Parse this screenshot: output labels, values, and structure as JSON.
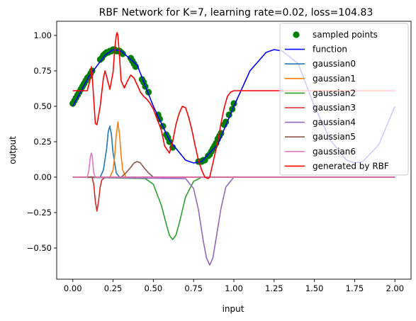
{
  "chart_data": {
    "type": "line",
    "title": "RBF Network for K=7, learning rate=0.02, loss=104.83",
    "xlabel": "input",
    "ylabel": "output",
    "xlim": [
      -0.1,
      2.1
    ],
    "ylim": [
      -0.72,
      1.1
    ],
    "xticks": [
      0.0,
      0.25,
      0.5,
      0.75,
      1.0,
      1.25,
      1.5,
      1.75,
      2.0
    ],
    "xtick_labels": [
      "0.00",
      "0.25",
      "0.50",
      "0.75",
      "1.00",
      "1.25",
      "1.50",
      "1.75",
      "2.00"
    ],
    "yticks": [
      -0.5,
      -0.25,
      0.0,
      0.25,
      0.5,
      0.75,
      1.0
    ],
    "ytick_labels": [
      "−0.50",
      "−0.25",
      "0.00",
      "0.25",
      "0.50",
      "0.75",
      "1.00"
    ],
    "grid": false,
    "legend_position": "top-right",
    "series": [
      {
        "name": "sampled points",
        "kind": "scatter",
        "color": "#008000",
        "x": [
          0.0,
          0.01,
          0.02,
          0.03,
          0.04,
          0.05,
          0.06,
          0.07,
          0.08,
          0.09,
          0.1,
          0.11,
          0.12,
          0.17,
          0.18,
          0.19,
          0.2,
          0.21,
          0.22,
          0.23,
          0.24,
          0.25,
          0.26,
          0.27,
          0.28,
          0.29,
          0.3,
          0.31,
          0.36,
          0.37,
          0.38,
          0.39,
          0.43,
          0.44,
          0.45,
          0.47,
          0.53,
          0.54,
          0.56,
          0.58,
          0.59,
          0.6,
          0.62,
          0.78,
          0.79,
          0.8,
          0.81,
          0.82,
          0.84,
          0.85,
          0.86,
          0.87,
          0.88,
          0.89,
          0.9,
          0.91,
          0.92,
          0.94,
          0.95,
          0.97,
          0.99,
          1.0
        ],
        "y": [
          0.52,
          0.54,
          0.56,
          0.58,
          0.6,
          0.62,
          0.64,
          0.66,
          0.68,
          0.7,
          0.71,
          0.73,
          0.75,
          0.83,
          0.84,
          0.86,
          0.87,
          0.88,
          0.88,
          0.89,
          0.89,
          0.9,
          0.9,
          0.89,
          0.89,
          0.89,
          0.88,
          0.87,
          0.84,
          0.82,
          0.8,
          0.78,
          0.69,
          0.67,
          0.64,
          0.6,
          0.44,
          0.41,
          0.36,
          0.3,
          0.28,
          0.25,
          0.21,
          0.11,
          0.11,
          0.11,
          0.12,
          0.12,
          0.15,
          0.16,
          0.18,
          0.2,
          0.22,
          0.24,
          0.27,
          0.29,
          0.31,
          0.37,
          0.39,
          0.44,
          0.48,
          0.52
        ]
      },
      {
        "name": "function",
        "kind": "line",
        "color": "#0000ff",
        "x": [
          0.0,
          0.1,
          0.2,
          0.25,
          0.3,
          0.4,
          0.5,
          0.6,
          0.7,
          0.75,
          0.8,
          0.9,
          1.0,
          1.1,
          1.2,
          1.25,
          1.3,
          1.4,
          1.5,
          1.6,
          1.7,
          1.75,
          1.8,
          1.9,
          2.0
        ],
        "y": [
          0.5,
          0.71,
          0.86,
          0.9,
          0.89,
          0.79,
          0.5,
          0.26,
          0.12,
          0.1,
          0.11,
          0.23,
          0.5,
          0.75,
          0.88,
          0.9,
          0.89,
          0.8,
          0.5,
          0.26,
          0.12,
          0.1,
          0.11,
          0.23,
          0.5
        ]
      },
      {
        "name": "gaussian0",
        "kind": "line",
        "color": "#1f77b4",
        "x": [
          0.0,
          0.17,
          0.19,
          0.21,
          0.22,
          0.23,
          0.24,
          0.25,
          0.27,
          0.29,
          2.0
        ],
        "y": [
          0.0,
          0.0,
          0.05,
          0.2,
          0.32,
          0.36,
          0.3,
          0.17,
          0.03,
          0.0,
          0.0
        ]
      },
      {
        "name": "gaussian1",
        "kind": "line",
        "color": "#ff7f0e",
        "x": [
          0.0,
          0.23,
          0.25,
          0.26,
          0.27,
          0.28,
          0.29,
          0.3,
          0.31,
          0.33,
          2.0
        ],
        "y": [
          0.0,
          0.0,
          0.05,
          0.15,
          0.3,
          0.39,
          0.3,
          0.15,
          0.05,
          0.0,
          0.0
        ]
      },
      {
        "name": "gaussian2",
        "kind": "line",
        "color": "#2ca02c",
        "x": [
          0.0,
          0.45,
          0.5,
          0.55,
          0.58,
          0.6,
          0.62,
          0.64,
          0.66,
          0.7,
          0.75,
          0.8,
          2.0
        ],
        "y": [
          0.0,
          -0.01,
          -0.05,
          -0.2,
          -0.33,
          -0.41,
          -0.44,
          -0.41,
          -0.33,
          -0.14,
          -0.03,
          0.0,
          0.0
        ]
      },
      {
        "name": "gaussian3",
        "kind": "line",
        "color": "#d62728",
        "x": [
          0.0,
          0.12,
          0.13,
          0.14,
          0.15,
          0.16,
          0.17,
          0.18,
          0.2,
          2.0
        ],
        "y": [
          0.0,
          0.0,
          -0.05,
          -0.17,
          -0.24,
          -0.17,
          -0.07,
          -0.02,
          0.0,
          0.0
        ]
      },
      {
        "name": "gaussian4",
        "kind": "line",
        "color": "#9467bd",
        "x": [
          0.0,
          0.7,
          0.75,
          0.78,
          0.81,
          0.83,
          0.85,
          0.87,
          0.89,
          0.92,
          0.95,
          1.0,
          2.0
        ],
        "y": [
          0.0,
          -0.01,
          -0.08,
          -0.23,
          -0.45,
          -0.57,
          -0.62,
          -0.57,
          -0.43,
          -0.22,
          -0.07,
          0.0,
          0.0
        ]
      },
      {
        "name": "gaussian5",
        "kind": "line",
        "color": "#8c564b",
        "x": [
          0.0,
          0.3,
          0.33,
          0.36,
          0.38,
          0.4,
          0.42,
          0.44,
          0.47,
          0.5,
          2.0
        ],
        "y": [
          0.0,
          0.0,
          0.03,
          0.07,
          0.1,
          0.11,
          0.1,
          0.07,
          0.03,
          0.0,
          0.0
        ]
      },
      {
        "name": "gaussian6",
        "kind": "line",
        "color": "#e377c2",
        "x": [
          0.0,
          0.09,
          0.1,
          0.11,
          0.115,
          0.12,
          0.13,
          0.14,
          2.0
        ],
        "y": [
          0.0,
          0.0,
          0.05,
          0.15,
          0.17,
          0.15,
          0.03,
          0.0,
          0.0
        ]
      },
      {
        "name": "generated by RBF",
        "kind": "line",
        "color": "#ff0000",
        "x": [
          0.0,
          0.09,
          0.11,
          0.115,
          0.12,
          0.13,
          0.14,
          0.15,
          0.17,
          0.19,
          0.2,
          0.21,
          0.23,
          0.25,
          0.26,
          0.27,
          0.275,
          0.28,
          0.29,
          0.3,
          0.32,
          0.34,
          0.36,
          0.38,
          0.4,
          0.42,
          0.44,
          0.46,
          0.48,
          0.5,
          0.52,
          0.55,
          0.57,
          0.6,
          0.62,
          0.64,
          0.66,
          0.68,
          0.7,
          0.72,
          0.74,
          0.76,
          0.78,
          0.8,
          0.82,
          0.84,
          0.85,
          0.86,
          0.88,
          0.9,
          0.92,
          0.94,
          0.96,
          0.98,
          1.0,
          1.02,
          2.0
        ],
        "y": [
          0.61,
          0.61,
          0.7,
          0.78,
          0.72,
          0.55,
          0.38,
          0.37,
          0.5,
          0.7,
          0.75,
          0.71,
          0.62,
          0.74,
          0.9,
          1.0,
          1.02,
          1.0,
          0.85,
          0.68,
          0.63,
          0.68,
          0.72,
          0.7,
          0.65,
          0.6,
          0.57,
          0.55,
          0.52,
          0.48,
          0.42,
          0.33,
          0.22,
          0.17,
          0.25,
          0.37,
          0.45,
          0.5,
          0.49,
          0.42,
          0.33,
          0.22,
          0.12,
          0.05,
          0.0,
          -0.01,
          0.0,
          0.05,
          0.15,
          0.25,
          0.38,
          0.49,
          0.57,
          0.6,
          0.61,
          0.61,
          0.61
        ]
      }
    ]
  }
}
